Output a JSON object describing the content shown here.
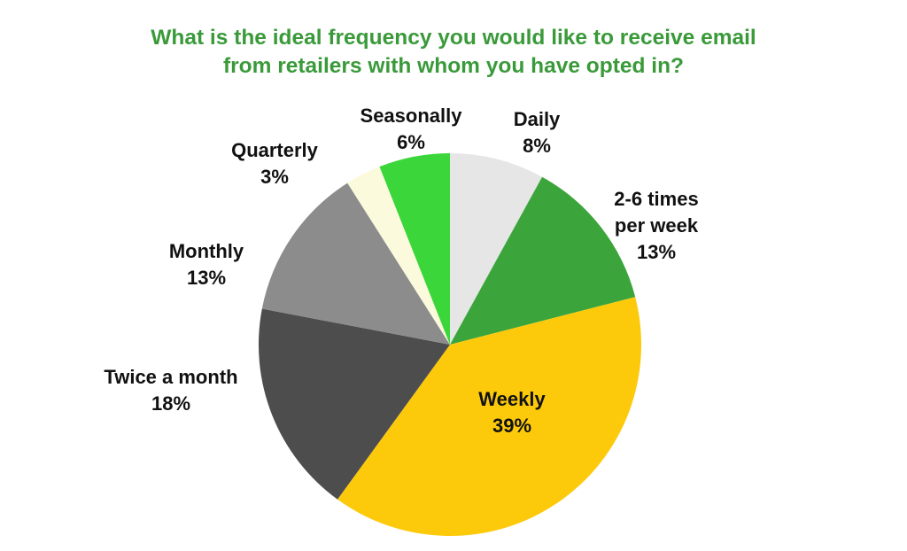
{
  "chart_data": {
    "type": "pie",
    "title": "What is the ideal frequency you would like to receive email from retailers with whom you have opted in?",
    "title_lines": [
      "What is the ideal frequency you would like to receive email",
      "from retailers with whom you have opted in?"
    ],
    "categories": [
      "Daily",
      "2-6 times per week",
      "Weekly",
      "Twice a month",
      "Monthly",
      "Quarterly",
      "Seasonally"
    ],
    "values": [
      8,
      13,
      39,
      18,
      13,
      3,
      6
    ],
    "unit": "%",
    "start_angle": "12 o'clock, clockwise",
    "colors": [
      "#e6e6e6",
      "#3ba53b",
      "#fdca0b",
      "#4d4d4d",
      "#8c8c8c",
      "#fcfadc",
      "#3ad63a"
    ],
    "legend": "none (data labels)"
  },
  "labels": [
    {
      "name": "Daily",
      "lines": [
        "Daily",
        "8%"
      ]
    },
    {
      "name": "2-6 times per week",
      "lines": [
        "2-6 times",
        "per week",
        "13%"
      ]
    },
    {
      "name": "Weekly",
      "lines": [
        "Weekly",
        "39%"
      ]
    },
    {
      "name": "Twice a month",
      "lines": [
        "Twice a month",
        "18%"
      ]
    },
    {
      "name": "Monthly",
      "lines": [
        "Monthly",
        "13%"
      ]
    },
    {
      "name": "Quarterly",
      "lines": [
        "Quarterly",
        "3%"
      ]
    },
    {
      "name": "Seasonally",
      "lines": [
        "Seasonally",
        "6%"
      ]
    }
  ]
}
